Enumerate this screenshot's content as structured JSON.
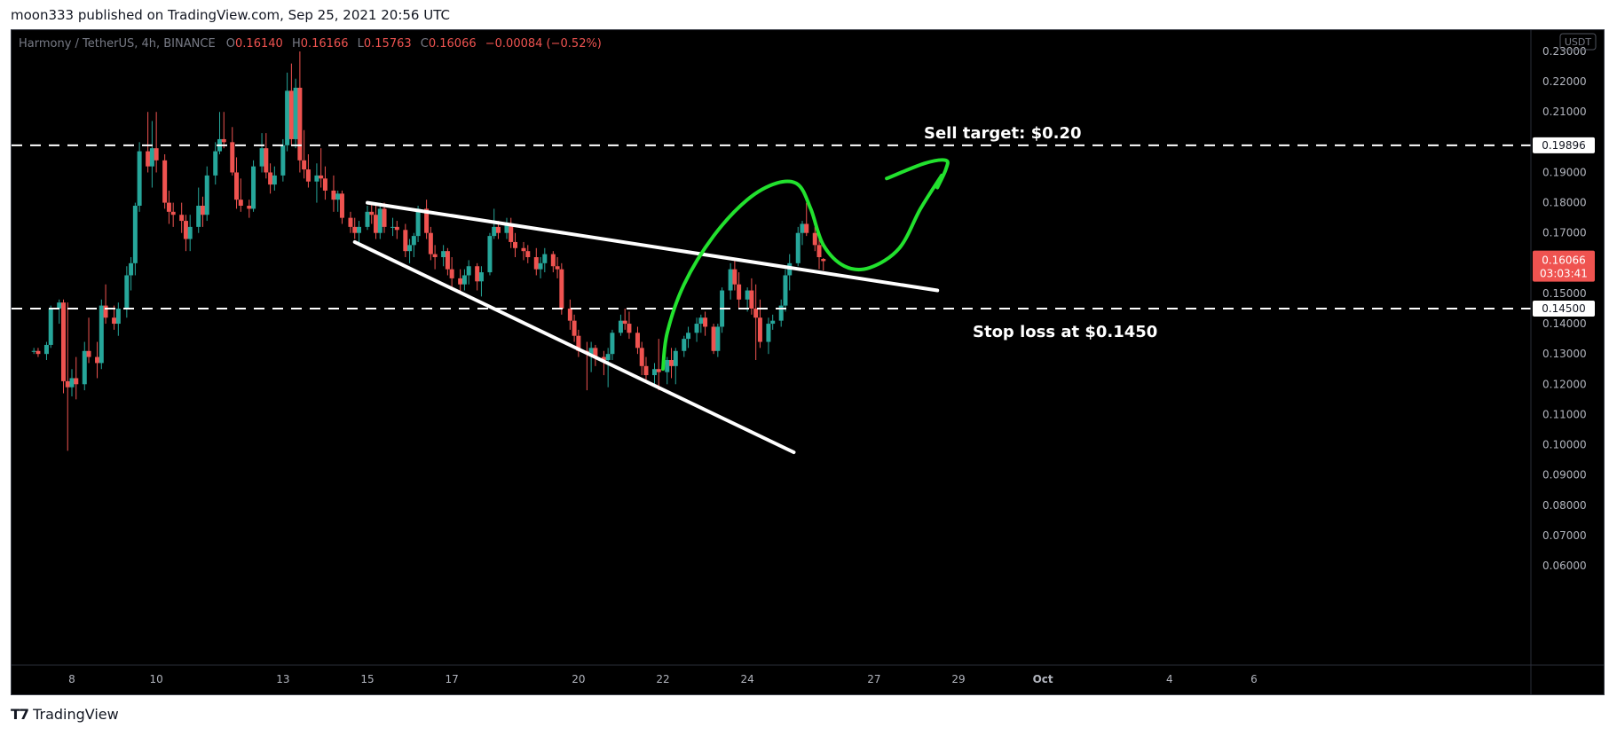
{
  "header": {
    "published_line": "moon333 published on TradingView.com, Sep 25, 2021 20:56 UTC"
  },
  "footer": {
    "brand_name": "TradingView",
    "logo_icon": "tradingview-logo-icon"
  },
  "colors": {
    "background": "#000000",
    "up": "#26a69a",
    "down": "#ef5350",
    "legend_text": "#787b86",
    "axis_text": "#b2b5be",
    "annotation_white": "#ffffff",
    "annotation_green": "#22e22e",
    "price_tag_bg": "#ef5350"
  },
  "chart_data": {
    "type": "candlestick",
    "symbol_line": "Harmony / TetherUS, 4h, BINANCE",
    "ohlc_legend": [
      {
        "key": "O",
        "value": "0.16140"
      },
      {
        "key": "H",
        "value": "0.16166"
      },
      {
        "key": "L",
        "value": "0.15763"
      },
      {
        "key": "C",
        "value": "0.16066"
      },
      {
        "key": "",
        "value": "−0.00084 (−0.52%)"
      }
    ],
    "currency_badge": "USDT",
    "y_ticks": [
      "0.23000",
      "0.22000",
      "0.21000",
      "0.20000",
      "0.19000",
      "0.18000",
      "0.17000",
      "0.16000",
      "0.15000",
      "0.14000",
      "0.13000",
      "0.12000",
      "0.11000",
      "0.10000",
      "0.09000",
      "0.08000",
      "0.07000",
      "0.06000"
    ],
    "y_tick_values": [
      0.23,
      0.22,
      0.21,
      0.2,
      0.19,
      0.18,
      0.17,
      0.16,
      0.15,
      0.14,
      0.13,
      0.12,
      0.11,
      0.1,
      0.09,
      0.08,
      0.07,
      0.06
    ],
    "ylim": [
      0.0555,
      0.2335
    ],
    "x_ticks": [
      {
        "label": "8",
        "day": 8
      },
      {
        "label": "10",
        "day": 10
      },
      {
        "label": "13",
        "day": 13
      },
      {
        "label": "15",
        "day": 15
      },
      {
        "label": "17",
        "day": 17
      },
      {
        "label": "20",
        "day": 20
      },
      {
        "label": "22",
        "day": 22
      },
      {
        "label": "24",
        "day": 24
      },
      {
        "label": "27",
        "day": 27
      },
      {
        "label": "29",
        "day": 29
      },
      {
        "label": "Oct",
        "day": 31
      },
      {
        "label": "4",
        "day": 34
      },
      {
        "label": "6",
        "day": 36
      }
    ],
    "xlim": [
      6.5,
      37.5
    ],
    "horizontal_levels": [
      {
        "price": 0.19896,
        "label": "0.19896"
      },
      {
        "price": 0.145,
        "label": "0.14500"
      }
    ],
    "current_price": {
      "price": 0.16066,
      "label": "0.16066",
      "countdown": "03:03:41"
    },
    "annotations": {
      "sell_target": "Sell target: $0.20",
      "stop_loss": "Stop loss at $0.1450"
    },
    "trendlines": [
      {
        "from": [
          15.0,
          0.18
        ],
        "to": [
          28.5,
          0.151
        ]
      },
      {
        "from": [
          14.7,
          0.167
        ],
        "to": [
          25.1,
          0.0975
        ]
      }
    ],
    "projection_path": [
      [
        22.0,
        0.125
      ],
      [
        22.1,
        0.137
      ],
      [
        22.5,
        0.153
      ],
      [
        23.2,
        0.169
      ],
      [
        24.0,
        0.181
      ],
      [
        24.7,
        0.1865
      ],
      [
        25.2,
        0.186
      ],
      [
        25.5,
        0.178
      ],
      [
        25.8,
        0.166
      ],
      [
        26.3,
        0.159
      ],
      [
        26.9,
        0.1585
      ],
      [
        27.6,
        0.165
      ],
      [
        28.1,
        0.178
      ],
      [
        28.6,
        0.189
      ]
    ],
    "arrowhead_path": [
      [
        27.3,
        0.188
      ],
      [
        28.2,
        0.193
      ],
      [
        28.7,
        0.194
      ],
      [
        28.7,
        0.191
      ],
      [
        28.5,
        0.185
      ]
    ],
    "candles": [
      [
        7.1,
        0.131,
        0.132,
        0.13,
        0.131
      ],
      [
        7.2,
        0.131,
        0.132,
        0.129,
        0.13
      ],
      [
        7.4,
        0.13,
        0.134,
        0.128,
        0.133
      ],
      [
        7.5,
        0.133,
        0.146,
        0.132,
        0.145
      ],
      [
        7.7,
        0.145,
        0.148,
        0.14,
        0.147
      ],
      [
        7.8,
        0.147,
        0.148,
        0.117,
        0.121
      ],
      [
        7.9,
        0.121,
        0.147,
        0.098,
        0.119
      ],
      [
        8.0,
        0.119,
        0.125,
        0.116,
        0.122
      ],
      [
        8.1,
        0.122,
        0.129,
        0.115,
        0.12
      ],
      [
        8.3,
        0.12,
        0.134,
        0.118,
        0.131
      ],
      [
        8.4,
        0.131,
        0.142,
        0.127,
        0.129
      ],
      [
        8.6,
        0.129,
        0.134,
        0.122,
        0.127
      ],
      [
        8.7,
        0.127,
        0.148,
        0.125,
        0.146
      ],
      [
        8.8,
        0.146,
        0.153,
        0.14,
        0.142
      ],
      [
        9.0,
        0.142,
        0.146,
        0.138,
        0.14
      ],
      [
        9.1,
        0.14,
        0.147,
        0.136,
        0.145
      ],
      [
        9.3,
        0.145,
        0.159,
        0.142,
        0.156
      ],
      [
        9.4,
        0.156,
        0.162,
        0.151,
        0.16
      ],
      [
        9.5,
        0.16,
        0.18,
        0.156,
        0.179
      ],
      [
        9.6,
        0.179,
        0.2,
        0.177,
        0.197
      ],
      [
        9.8,
        0.197,
        0.21,
        0.19,
        0.192
      ],
      [
        9.9,
        0.192,
        0.207,
        0.185,
        0.198
      ],
      [
        10.0,
        0.198,
        0.21,
        0.19,
        0.194
      ],
      [
        10.2,
        0.194,
        0.196,
        0.178,
        0.18
      ],
      [
        10.3,
        0.18,
        0.184,
        0.173,
        0.177
      ],
      [
        10.4,
        0.177,
        0.18,
        0.172,
        0.176
      ],
      [
        10.6,
        0.176,
        0.18,
        0.17,
        0.174
      ],
      [
        10.7,
        0.174,
        0.176,
        0.164,
        0.168
      ],
      [
        10.8,
        0.168,
        0.176,
        0.164,
        0.172
      ],
      [
        11.0,
        0.172,
        0.185,
        0.17,
        0.179
      ],
      [
        11.1,
        0.179,
        0.182,
        0.172,
        0.176
      ],
      [
        11.2,
        0.176,
        0.192,
        0.174,
        0.189
      ],
      [
        11.4,
        0.189,
        0.2,
        0.186,
        0.197
      ],
      [
        11.5,
        0.197,
        0.21,
        0.196,
        0.201
      ],
      [
        11.6,
        0.201,
        0.21,
        0.198,
        0.2
      ],
      [
        11.8,
        0.2,
        0.205,
        0.189,
        0.19
      ],
      [
        11.9,
        0.19,
        0.195,
        0.178,
        0.181
      ],
      [
        12.0,
        0.181,
        0.188,
        0.177,
        0.179
      ],
      [
        12.2,
        0.179,
        0.181,
        0.175,
        0.178
      ],
      [
        12.3,
        0.178,
        0.194,
        0.177,
        0.192
      ],
      [
        12.5,
        0.192,
        0.203,
        0.19,
        0.198
      ],
      [
        12.6,
        0.198,
        0.203,
        0.188,
        0.19
      ],
      [
        12.7,
        0.19,
        0.193,
        0.183,
        0.186
      ],
      [
        12.8,
        0.186,
        0.192,
        0.184,
        0.189
      ],
      [
        13.0,
        0.189,
        0.201,
        0.187,
        0.199
      ],
      [
        13.1,
        0.199,
        0.223,
        0.197,
        0.217
      ],
      [
        13.2,
        0.217,
        0.226,
        0.199,
        0.201
      ],
      [
        13.3,
        0.201,
        0.221,
        0.198,
        0.218
      ],
      [
        13.4,
        0.218,
        0.23,
        0.19,
        0.194
      ],
      [
        13.5,
        0.194,
        0.204,
        0.188,
        0.191
      ],
      [
        13.6,
        0.191,
        0.196,
        0.185,
        0.187
      ],
      [
        13.8,
        0.187,
        0.193,
        0.18,
        0.189
      ],
      [
        13.9,
        0.189,
        0.198,
        0.185,
        0.188
      ],
      [
        14.0,
        0.188,
        0.192,
        0.181,
        0.184
      ],
      [
        14.2,
        0.184,
        0.189,
        0.177,
        0.181
      ],
      [
        14.3,
        0.181,
        0.184,
        0.177,
        0.183
      ],
      [
        14.4,
        0.183,
        0.184,
        0.173,
        0.175
      ],
      [
        14.6,
        0.175,
        0.177,
        0.17,
        0.172
      ],
      [
        14.7,
        0.172,
        0.175,
        0.168,
        0.17
      ],
      [
        14.8,
        0.17,
        0.174,
        0.166,
        0.172
      ],
      [
        15.0,
        0.172,
        0.179,
        0.171,
        0.177
      ],
      [
        15.1,
        0.177,
        0.18,
        0.173,
        0.176
      ],
      [
        15.2,
        0.176,
        0.179,
        0.168,
        0.17
      ],
      [
        15.3,
        0.17,
        0.18,
        0.168,
        0.178
      ],
      [
        15.4,
        0.178,
        0.18,
        0.17,
        0.172
      ],
      [
        15.6,
        0.172,
        0.175,
        0.169,
        0.172
      ],
      [
        15.7,
        0.172,
        0.174,
        0.168,
        0.171
      ],
      [
        15.9,
        0.171,
        0.173,
        0.162,
        0.164
      ],
      [
        16.0,
        0.164,
        0.168,
        0.16,
        0.166
      ],
      [
        16.1,
        0.166,
        0.17,
        0.162,
        0.169
      ],
      [
        16.2,
        0.169,
        0.179,
        0.167,
        0.178
      ],
      [
        16.4,
        0.178,
        0.181,
        0.168,
        0.17
      ],
      [
        16.5,
        0.17,
        0.172,
        0.161,
        0.163
      ],
      [
        16.6,
        0.163,
        0.166,
        0.158,
        0.162
      ],
      [
        16.8,
        0.162,
        0.166,
        0.159,
        0.164
      ],
      [
        16.9,
        0.164,
        0.165,
        0.156,
        0.158
      ],
      [
        17.0,
        0.158,
        0.162,
        0.152,
        0.155
      ],
      [
        17.2,
        0.155,
        0.158,
        0.15,
        0.153
      ],
      [
        17.3,
        0.153,
        0.158,
        0.151,
        0.156
      ],
      [
        17.4,
        0.156,
        0.161,
        0.153,
        0.159
      ],
      [
        17.6,
        0.159,
        0.16,
        0.151,
        0.154
      ],
      [
        17.7,
        0.154,
        0.159,
        0.149,
        0.157
      ],
      [
        17.9,
        0.157,
        0.17,
        0.156,
        0.169
      ],
      [
        18.0,
        0.169,
        0.178,
        0.168,
        0.172
      ],
      [
        18.1,
        0.172,
        0.174,
        0.168,
        0.17
      ],
      [
        18.3,
        0.17,
        0.175,
        0.168,
        0.173
      ],
      [
        18.4,
        0.173,
        0.175,
        0.165,
        0.167
      ],
      [
        18.5,
        0.167,
        0.17,
        0.162,
        0.165
      ],
      [
        18.7,
        0.165,
        0.167,
        0.161,
        0.164
      ],
      [
        18.8,
        0.164,
        0.166,
        0.16,
        0.162
      ],
      [
        19.0,
        0.162,
        0.165,
        0.156,
        0.158
      ],
      [
        19.1,
        0.158,
        0.162,
        0.155,
        0.16
      ],
      [
        19.2,
        0.16,
        0.165,
        0.157,
        0.163
      ],
      [
        19.4,
        0.163,
        0.164,
        0.157,
        0.159
      ],
      [
        19.5,
        0.159,
        0.162,
        0.155,
        0.158
      ],
      [
        19.6,
        0.158,
        0.16,
        0.143,
        0.145
      ],
      [
        19.8,
        0.145,
        0.148,
        0.138,
        0.141
      ],
      [
        19.9,
        0.141,
        0.143,
        0.134,
        0.136
      ],
      [
        20.0,
        0.136,
        0.138,
        0.129,
        0.131
      ],
      [
        20.2,
        0.131,
        0.134,
        0.118,
        0.13
      ],
      [
        20.3,
        0.13,
        0.134,
        0.124,
        0.132
      ],
      [
        20.4,
        0.132,
        0.133,
        0.126,
        0.129
      ],
      [
        20.6,
        0.129,
        0.131,
        0.123,
        0.128
      ],
      [
        20.7,
        0.128,
        0.132,
        0.119,
        0.13
      ],
      [
        20.8,
        0.13,
        0.138,
        0.128,
        0.137
      ],
      [
        21.0,
        0.137,
        0.143,
        0.136,
        0.141
      ],
      [
        21.1,
        0.141,
        0.145,
        0.138,
        0.14
      ],
      [
        21.2,
        0.14,
        0.144,
        0.135,
        0.137
      ],
      [
        21.4,
        0.137,
        0.139,
        0.13,
        0.132
      ],
      [
        21.5,
        0.132,
        0.134,
        0.123,
        0.126
      ],
      [
        21.6,
        0.126,
        0.129,
        0.121,
        0.123
      ],
      [
        21.8,
        0.123,
        0.127,
        0.12,
        0.125
      ],
      [
        21.9,
        0.125,
        0.135,
        0.118,
        0.124
      ],
      [
        22.1,
        0.124,
        0.129,
        0.12,
        0.128
      ],
      [
        22.2,
        0.128,
        0.132,
        0.122,
        0.126
      ],
      [
        22.3,
        0.126,
        0.132,
        0.12,
        0.131
      ],
      [
        22.5,
        0.131,
        0.136,
        0.129,
        0.135
      ],
      [
        22.6,
        0.135,
        0.139,
        0.132,
        0.137
      ],
      [
        22.8,
        0.137,
        0.142,
        0.134,
        0.14
      ],
      [
        22.9,
        0.14,
        0.143,
        0.137,
        0.142
      ],
      [
        23.0,
        0.142,
        0.144,
        0.136,
        0.139
      ],
      [
        23.2,
        0.139,
        0.14,
        0.13,
        0.131
      ],
      [
        23.3,
        0.131,
        0.14,
        0.129,
        0.139
      ],
      [
        23.4,
        0.139,
        0.152,
        0.137,
        0.151
      ],
      [
        23.6,
        0.151,
        0.16,
        0.148,
        0.158
      ],
      [
        23.7,
        0.158,
        0.161,
        0.151,
        0.153
      ],
      [
        23.8,
        0.153,
        0.157,
        0.145,
        0.148
      ],
      [
        24.0,
        0.148,
        0.152,
        0.144,
        0.151
      ],
      [
        24.1,
        0.151,
        0.155,
        0.143,
        0.145
      ],
      [
        24.2,
        0.145,
        0.153,
        0.128,
        0.142
      ],
      [
        24.3,
        0.142,
        0.148,
        0.132,
        0.134
      ],
      [
        24.5,
        0.134,
        0.142,
        0.13,
        0.14
      ],
      [
        24.6,
        0.14,
        0.143,
        0.138,
        0.141
      ],
      [
        24.8,
        0.141,
        0.148,
        0.139,
        0.146
      ],
      [
        24.9,
        0.146,
        0.158,
        0.144,
        0.156
      ],
      [
        25.0,
        0.156,
        0.163,
        0.151,
        0.16
      ],
      [
        25.2,
        0.16,
        0.172,
        0.159,
        0.17
      ],
      [
        25.3,
        0.17,
        0.174,
        0.166,
        0.173
      ],
      [
        25.4,
        0.173,
        0.18,
        0.169,
        0.17
      ],
      [
        25.6,
        0.17,
        0.172,
        0.164,
        0.166
      ],
      [
        25.7,
        0.166,
        0.169,
        0.158,
        0.162
      ],
      [
        25.8,
        0.1614,
        0.1617,
        0.1576,
        0.1607
      ]
    ]
  }
}
